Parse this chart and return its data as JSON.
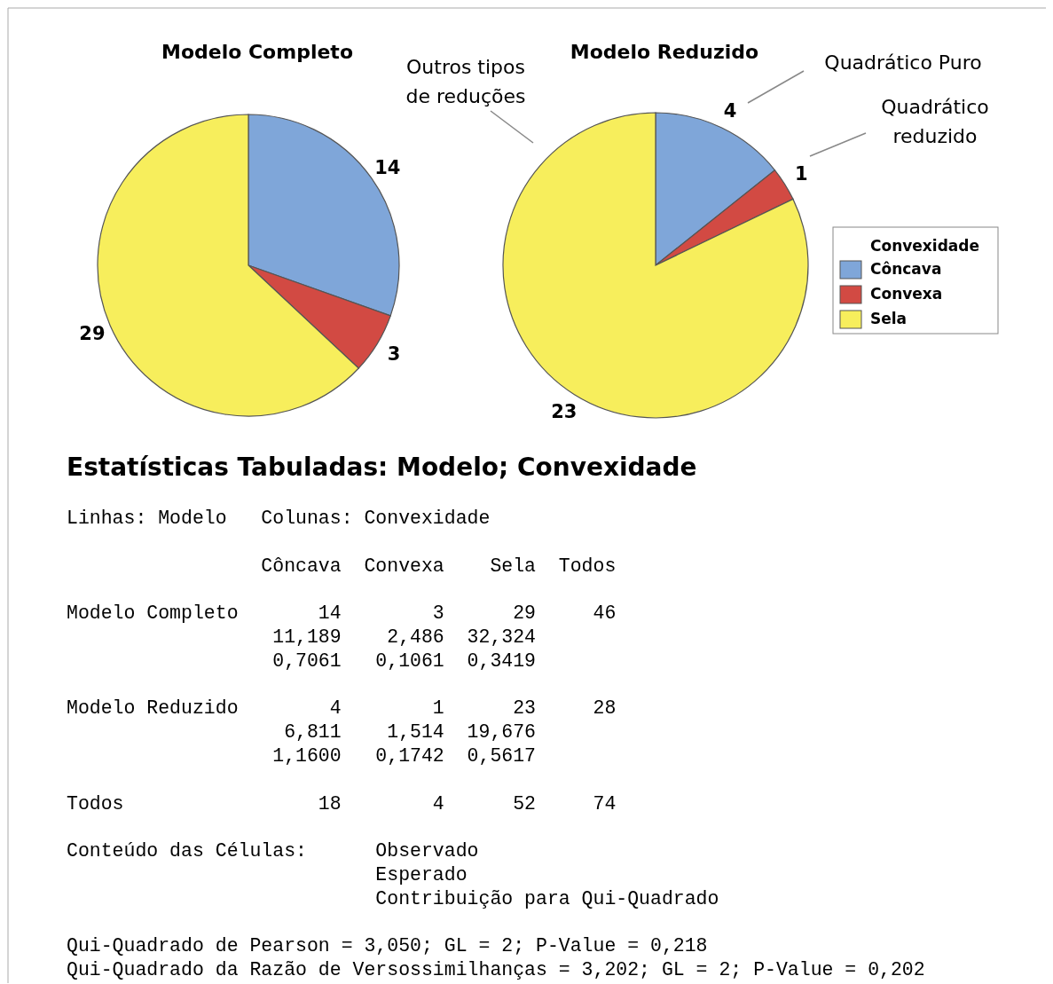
{
  "chart_data": [
    {
      "type": "pie",
      "title": "Modelo Completo",
      "categories": [
        null,
        null,
        null
      ],
      "values": [
        14,
        3,
        29
      ],
      "colors": [
        "#7fa6d9",
        "#d24a43",
        "#f7ee5c"
      ],
      "data_labels": true
    },
    {
      "type": "pie",
      "title": "Modelo Reduzido",
      "categories": [
        "Côncava",
        "Convexa",
        "Sela"
      ],
      "values": [
        4,
        1,
        23
      ],
      "colors": [
        "#7fa6d9",
        "#d24a43",
        "#f7ee5c"
      ],
      "data_labels": true,
      "legend": "right",
      "legend_title": "Convexidade",
      "annotations": [
        "Outros tipos de reduções",
        "Quadrático Puro",
        "Quadrático reduzido"
      ]
    },
    {
      "type": "other",
      "title": "Estatísticas Tabuladas: Modelo; Convexidade",
      "annotations": [
        "Linhas: Modelo   Colunas: Convexidade",
        "                 Côncava  Convexa    Sela  Todos",
        "Modelo Completo       14        3      29     46",
        "                  11,189    2,486  32,324",
        "                  0,7061   0,1061  0,3419",
        "Modelo Reduzido        4        1      23     28",
        "                   6,811    1,514  19,676",
        "                  1,1600   0,1742  0,5617",
        "Todos                 18        4      52     74",
        "Conteúdo das Células:      Observado",
        "                           Esperado",
        "                           Contribuição para Qui-Quadrado",
        "Qui-Quadrado de Pearson = 3,050; GL = 2; P-Value = 0,218",
        "Qui-Quadrado da Razão de Versossimilhanças = 3,202; GL = 2; P-Value = 0,202"
      ]
    }
  ]
}
